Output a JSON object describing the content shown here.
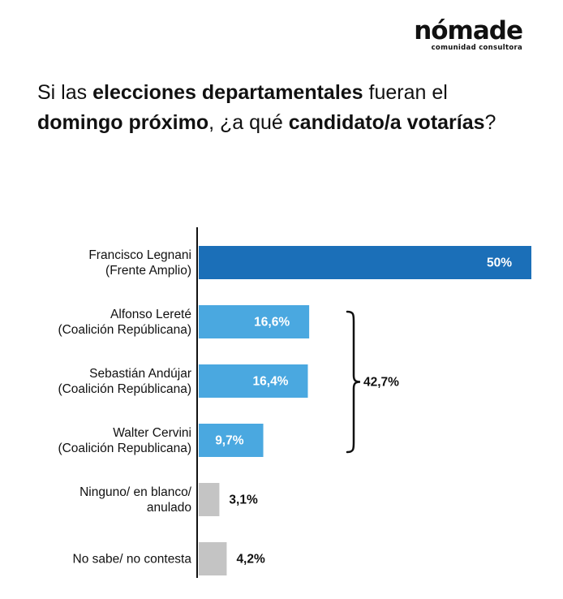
{
  "logo": {
    "wordmark": "nómade",
    "tagline": "comunidad consultora"
  },
  "question": {
    "parts": [
      {
        "text": "Si las ",
        "bold": false
      },
      {
        "text": "elecciones departamentales",
        "bold": true
      },
      {
        "text": " fueran el ",
        "bold": false
      },
      {
        "text": "domingo próximo",
        "bold": true
      },
      {
        "text": ", ¿a qué ",
        "bold": false
      },
      {
        "text": "candidato/a votarías",
        "bold": true
      },
      {
        "text": "?",
        "bold": false
      }
    ]
  },
  "chart_data": {
    "type": "bar",
    "orientation": "horizontal",
    "categories": [
      [
        "Francisco Legnani",
        "(Frente Amplio)"
      ],
      [
        "Alfonso Lereté",
        "(Coalición Repúblicana)"
      ],
      [
        "Sebastián Andújar",
        "(Coalición Repúblicana)"
      ],
      [
        "Walter Cervini",
        "(Coalición Republicana)"
      ],
      [
        "Ninguno/ en blanco/",
        "anulado"
      ],
      [
        "No sabe/ no contesta"
      ]
    ],
    "values": [
      50,
      16.6,
      16.4,
      9.7,
      3.1,
      4.2
    ],
    "value_labels": [
      "50%",
      "16,6%",
      "16,4%",
      "9,7%",
      "3,1%",
      "4,2%"
    ],
    "colors": [
      "#1b6fb8",
      "#4aa8e0",
      "#4aa8e0",
      "#4aa8e0",
      "#c4c4c4",
      "#c4c4c4"
    ],
    "label_position": [
      "inside",
      "inside",
      "inside",
      "inside",
      "outside",
      "outside"
    ],
    "xlim": [
      0,
      50
    ],
    "grid": false,
    "bracket": {
      "from_index": 1,
      "to_index": 3,
      "label": "42,7%"
    }
  }
}
